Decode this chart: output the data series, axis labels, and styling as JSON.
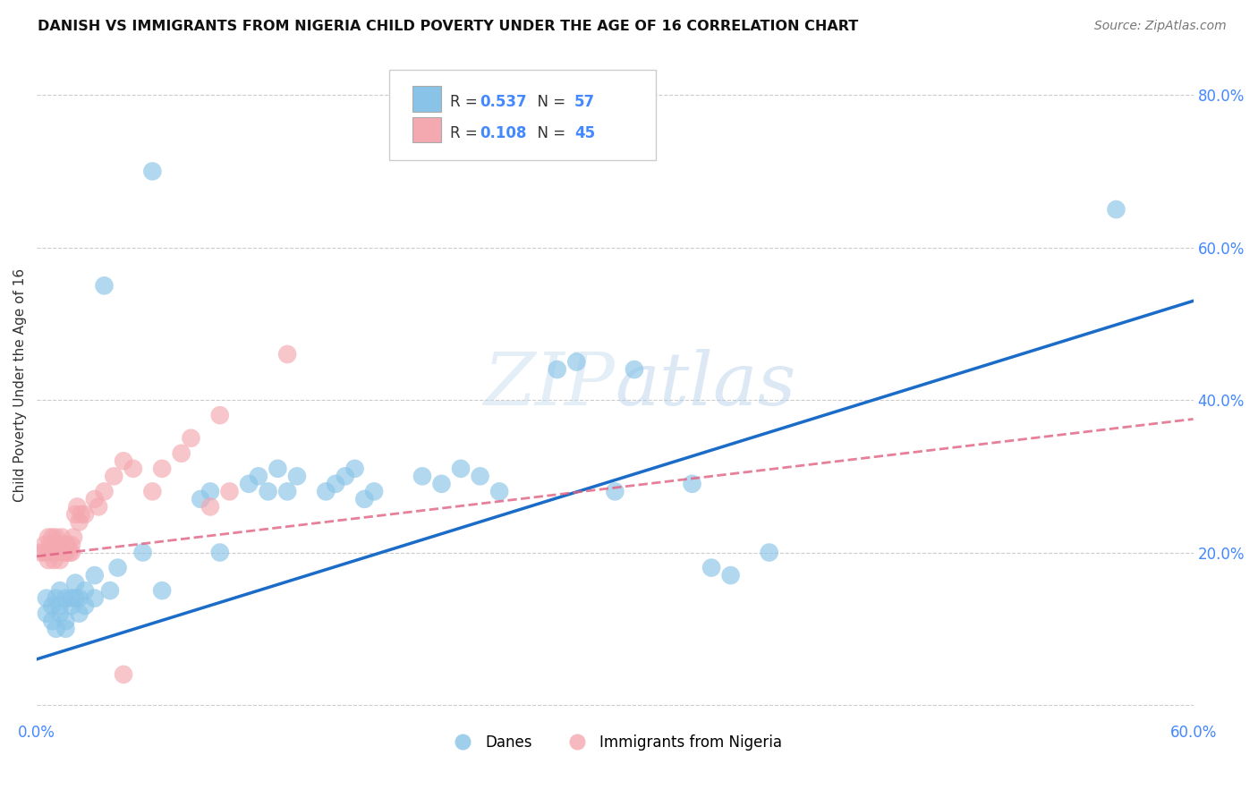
{
  "title": "DANISH VS IMMIGRANTS FROM NIGERIA CHILD POVERTY UNDER THE AGE OF 16 CORRELATION CHART",
  "source": "Source: ZipAtlas.com",
  "ylabel": "Child Poverty Under the Age of 16",
  "xlim": [
    0.0,
    0.6
  ],
  "ylim": [
    -0.02,
    0.86
  ],
  "xticks": [
    0.0,
    0.1,
    0.2,
    0.3,
    0.4,
    0.5,
    0.6
  ],
  "yticks": [
    0.0,
    0.2,
    0.4,
    0.6,
    0.8
  ],
  "ytick_labels": [
    "",
    "20.0%",
    "40.0%",
    "60.0%",
    "80.0%"
  ],
  "xtick_labels": [
    "0.0%",
    "",
    "",
    "",
    "",
    "",
    "60.0%"
  ],
  "legend_label1": "Danes",
  "legend_label2": "Immigrants from Nigeria",
  "blue_color": "#89c4e8",
  "pink_color": "#f4a8b0",
  "line_blue": "#1a6cc8",
  "line_pink": "#e06080",
  "blue_line_x0": 0.0,
  "blue_line_y0": 0.06,
  "blue_line_x1": 0.6,
  "blue_line_y1": 0.53,
  "pink_line_x0": 0.0,
  "pink_line_y0": 0.195,
  "pink_line_x1": 0.6,
  "pink_line_y1": 0.375,
  "danes_x": [
    0.005,
    0.005,
    0.008,
    0.008,
    0.01,
    0.01,
    0.012,
    0.012,
    0.012,
    0.015,
    0.015,
    0.015,
    0.018,
    0.018,
    0.02,
    0.02,
    0.022,
    0.022,
    0.025,
    0.025,
    0.03,
    0.03,
    0.035,
    0.038,
    0.042,
    0.055,
    0.06,
    0.065,
    0.085,
    0.09,
    0.095,
    0.11,
    0.115,
    0.12,
    0.125,
    0.13,
    0.135,
    0.15,
    0.155,
    0.16,
    0.165,
    0.17,
    0.175,
    0.2,
    0.21,
    0.22,
    0.23,
    0.24,
    0.27,
    0.28,
    0.3,
    0.31,
    0.34,
    0.35,
    0.36,
    0.38,
    0.56
  ],
  "danes_y": [
    0.14,
    0.12,
    0.13,
    0.11,
    0.14,
    0.1,
    0.13,
    0.15,
    0.12,
    0.14,
    0.11,
    0.1,
    0.13,
    0.14,
    0.16,
    0.14,
    0.12,
    0.14,
    0.13,
    0.15,
    0.14,
    0.17,
    0.55,
    0.15,
    0.18,
    0.2,
    0.7,
    0.15,
    0.27,
    0.28,
    0.2,
    0.29,
    0.3,
    0.28,
    0.31,
    0.28,
    0.3,
    0.28,
    0.29,
    0.3,
    0.31,
    0.27,
    0.28,
    0.3,
    0.29,
    0.31,
    0.3,
    0.28,
    0.44,
    0.45,
    0.28,
    0.44,
    0.29,
    0.18,
    0.17,
    0.2,
    0.65
  ],
  "nigeria_x": [
    0.002,
    0.004,
    0.004,
    0.006,
    0.006,
    0.007,
    0.007,
    0.008,
    0.008,
    0.009,
    0.009,
    0.01,
    0.01,
    0.01,
    0.012,
    0.012,
    0.013,
    0.014,
    0.015,
    0.015,
    0.016,
    0.017,
    0.018,
    0.018,
    0.019,
    0.02,
    0.021,
    0.022,
    0.023,
    0.025,
    0.03,
    0.032,
    0.035,
    0.04,
    0.045,
    0.05,
    0.06,
    0.065,
    0.075,
    0.08,
    0.09,
    0.095,
    0.1,
    0.13,
    0.045
  ],
  "nigeria_y": [
    0.2,
    0.21,
    0.2,
    0.22,
    0.19,
    0.21,
    0.2,
    0.22,
    0.2,
    0.19,
    0.21,
    0.2,
    0.21,
    0.22,
    0.19,
    0.21,
    0.22,
    0.2,
    0.21,
    0.2,
    0.21,
    0.2,
    0.21,
    0.2,
    0.22,
    0.25,
    0.26,
    0.24,
    0.25,
    0.25,
    0.27,
    0.26,
    0.28,
    0.3,
    0.32,
    0.31,
    0.28,
    0.31,
    0.33,
    0.35,
    0.26,
    0.38,
    0.28,
    0.46,
    0.04
  ],
  "background_color": "#ffffff",
  "grid_color": "#cccccc"
}
